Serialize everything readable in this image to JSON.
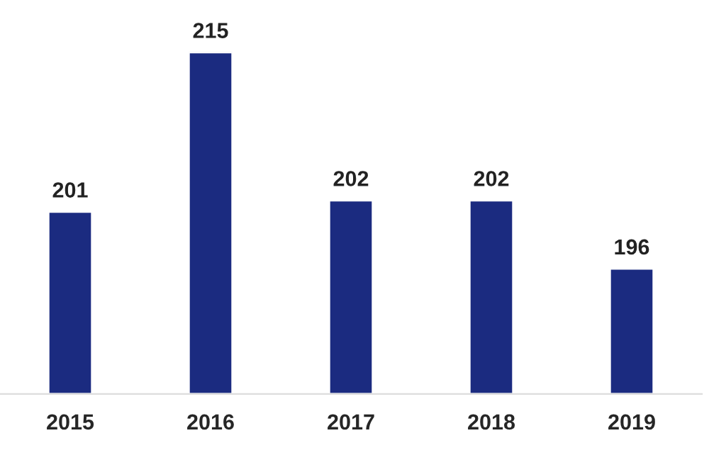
{
  "chart_data": {
    "type": "bar",
    "categories": [
      "2015",
      "2016",
      "2017",
      "2018",
      "2019"
    ],
    "series": [
      {
        "color": "#1b2b80",
        "values": [
          201,
          215,
          202,
          202,
          196
        ]
      }
    ],
    "ylim": [
      185,
      215
    ],
    "data_labels": true,
    "grid": false,
    "tick_labels": "x"
  }
}
